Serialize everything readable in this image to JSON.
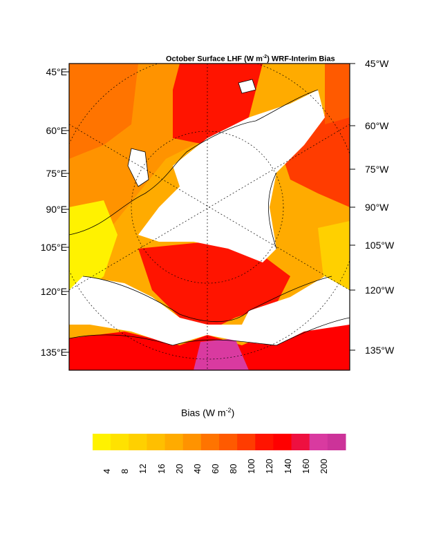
{
  "map": {
    "title_main": "October Surface LHF (W m",
    "title_exp": "-2",
    "title_tail": ") WRF-Interim Bias",
    "left_labels": [
      "45°E",
      "60°E",
      "75°E",
      "90°E",
      "105°E",
      "120°E",
      "135°E"
    ],
    "right_labels": [
      "45°W",
      "60°W",
      "75°W",
      "90°W",
      "105°W",
      "120°W",
      "135°W"
    ],
    "projection": "polar stereographic, North Pole",
    "land_color": "#ffffff",
    "coastline_color": "#000000"
  },
  "colorbar": {
    "title_main": "Bias (W m",
    "title_exp": "-2",
    "title_tail": ")",
    "levels": [
      "4",
      "8",
      "12",
      "16",
      "20",
      "40",
      "60",
      "80",
      "100",
      "120",
      "140",
      "160",
      "200"
    ],
    "colors": [
      "#fff200",
      "#ffe200",
      "#ffd000",
      "#ffbf00",
      "#ffab00",
      "#ff9300",
      "#ff7400",
      "#ff5a00",
      "#ff3c00",
      "#ff1400",
      "#ff0000",
      "#ee1040",
      "#d93aa0",
      "#cc3399"
    ]
  }
}
